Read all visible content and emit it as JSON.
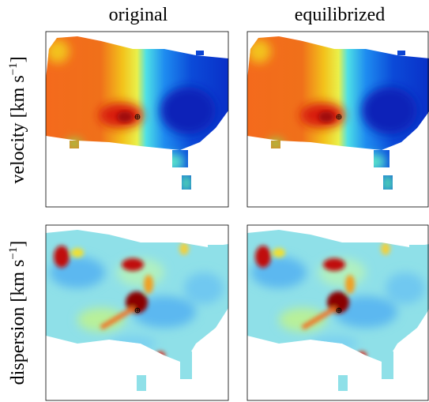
{
  "columns": [
    "original",
    "equilibrized"
  ],
  "rows": [
    {
      "text": "velocity [km s",
      "superscript": "−1",
      "suffix": "]"
    },
    {
      "text": "dispersion [km s",
      "superscript": "−1",
      "suffix": "]"
    }
  ]
}
